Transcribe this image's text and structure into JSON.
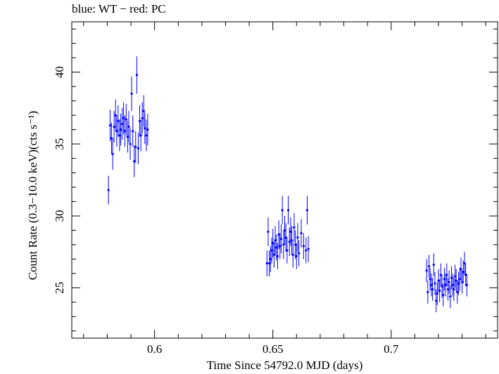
{
  "chart_data": {
    "type": "scatter",
    "title": "blue: WT − red: PC",
    "xlabel": "Time Since 54792.0 MJD (days)",
    "ylabel": "Count Rate (0.3−10.0 keV)(cts s⁻¹)",
    "xlim": [
      0.565,
      0.745
    ],
    "ylim": [
      21.5,
      43.5
    ],
    "xticks": [
      "0.6",
      "0.65",
      "0.7"
    ],
    "yticks": [
      "25",
      "30",
      "35",
      "40"
    ],
    "grid": false,
    "series": [
      {
        "name": "WT",
        "color": "#0000ff",
        "points": [
          [
            0.5805,
            31.8,
            1.0
          ],
          [
            0.5812,
            36.3,
            1.1
          ],
          [
            0.5818,
            35.4,
            1.1
          ],
          [
            0.5823,
            34.3,
            1.1
          ],
          [
            0.5829,
            36.2,
            1.1
          ],
          [
            0.5835,
            37.0,
            1.1
          ],
          [
            0.584,
            35.9,
            1.1
          ],
          [
            0.5846,
            36.6,
            1.1
          ],
          [
            0.5852,
            35.6,
            1.1
          ],
          [
            0.5857,
            36.0,
            1.1
          ],
          [
            0.5863,
            36.4,
            1.1
          ],
          [
            0.5869,
            36.8,
            1.1
          ],
          [
            0.5874,
            35.9,
            1.1
          ],
          [
            0.588,
            36.7,
            1.1
          ],
          [
            0.5886,
            35.5,
            1.1
          ],
          [
            0.5891,
            36.2,
            1.1
          ],
          [
            0.5897,
            35.0,
            1.1
          ],
          [
            0.5903,
            38.5,
            1.2
          ],
          [
            0.5908,
            35.9,
            1.1
          ],
          [
            0.5914,
            33.8,
            1.1
          ],
          [
            0.592,
            34.8,
            1.1
          ],
          [
            0.5925,
            39.8,
            1.3
          ],
          [
            0.5931,
            34.7,
            1.1
          ],
          [
            0.5937,
            36.6,
            1.1
          ],
          [
            0.5942,
            35.6,
            1.1
          ],
          [
            0.5948,
            36.8,
            1.1
          ],
          [
            0.5954,
            37.3,
            1.1
          ],
          [
            0.5959,
            36.1,
            1.1
          ],
          [
            0.5965,
            35.6,
            1.1
          ],
          [
            0.5971,
            36.0,
            1.1
          ],
          [
            0.6475,
            26.7,
            0.9
          ],
          [
            0.648,
            28.9,
            1.0
          ],
          [
            0.6485,
            26.7,
            0.9
          ],
          [
            0.649,
            27.0,
            0.9
          ],
          [
            0.6495,
            27.6,
            0.9
          ],
          [
            0.65,
            28.1,
            1.0
          ],
          [
            0.6505,
            27.3,
            0.9
          ],
          [
            0.651,
            28.3,
            1.0
          ],
          [
            0.6515,
            27.8,
            0.9
          ],
          [
            0.652,
            27.2,
            0.9
          ],
          [
            0.6525,
            28.7,
            1.0
          ],
          [
            0.653,
            27.9,
            0.9
          ],
          [
            0.6535,
            28.4,
            1.0
          ],
          [
            0.654,
            30.4,
            1.0
          ],
          [
            0.6545,
            28.0,
            1.0
          ],
          [
            0.655,
            29.0,
            1.0
          ],
          [
            0.6555,
            28.5,
            1.0
          ],
          [
            0.656,
            27.6,
            0.9
          ],
          [
            0.6565,
            30.4,
            1.0
          ],
          [
            0.657,
            28.2,
            1.0
          ],
          [
            0.6575,
            28.9,
            1.0
          ],
          [
            0.658,
            28.3,
            1.0
          ],
          [
            0.6585,
            27.3,
            0.9
          ],
          [
            0.659,
            29.2,
            1.0
          ],
          [
            0.6595,
            28.0,
            1.0
          ],
          [
            0.66,
            27.2,
            0.9
          ],
          [
            0.6605,
            28.5,
            1.0
          ],
          [
            0.661,
            27.4,
            0.9
          ],
          [
            0.662,
            28.8,
            1.0
          ],
          [
            0.663,
            27.9,
            0.9
          ],
          [
            0.664,
            27.6,
            0.9
          ],
          [
            0.6645,
            30.4,
            1.0
          ],
          [
            0.665,
            27.7,
            0.9
          ],
          [
            0.715,
            26.2,
            0.8
          ],
          [
            0.7155,
            24.7,
            0.8
          ],
          [
            0.716,
            26.5,
            0.8
          ],
          [
            0.7165,
            25.6,
            0.8
          ],
          [
            0.717,
            25.2,
            0.8
          ],
          [
            0.7175,
            24.9,
            0.8
          ],
          [
            0.718,
            26.6,
            0.8
          ],
          [
            0.7185,
            25.3,
            0.8
          ],
          [
            0.719,
            24.1,
            0.8
          ],
          [
            0.7195,
            24.6,
            0.8
          ],
          [
            0.72,
            25.5,
            0.8
          ],
          [
            0.7205,
            24.8,
            0.8
          ],
          [
            0.721,
            25.9,
            0.8
          ],
          [
            0.7215,
            25.1,
            0.8
          ],
          [
            0.722,
            24.5,
            0.8
          ],
          [
            0.7225,
            25.6,
            0.8
          ],
          [
            0.723,
            25.2,
            0.8
          ],
          [
            0.7235,
            25.9,
            0.8
          ],
          [
            0.724,
            24.9,
            0.8
          ],
          [
            0.7245,
            25.4,
            0.8
          ],
          [
            0.725,
            24.4,
            0.8
          ],
          [
            0.7255,
            25.7,
            0.8
          ],
          [
            0.726,
            25.2,
            0.8
          ],
          [
            0.7265,
            24.9,
            0.8
          ],
          [
            0.727,
            25.8,
            0.8
          ],
          [
            0.7275,
            25.5,
            0.8
          ],
          [
            0.728,
            24.7,
            0.8
          ],
          [
            0.7285,
            25.3,
            0.8
          ],
          [
            0.729,
            25.6,
            0.8
          ],
          [
            0.7295,
            26.3,
            0.8
          ],
          [
            0.73,
            25.4,
            0.8
          ],
          [
            0.7305,
            26.1,
            0.8
          ],
          [
            0.731,
            26.7,
            0.8
          ],
          [
            0.7315,
            25.9,
            0.8
          ],
          [
            0.732,
            25.2,
            0.8
          ]
        ]
      }
    ]
  }
}
